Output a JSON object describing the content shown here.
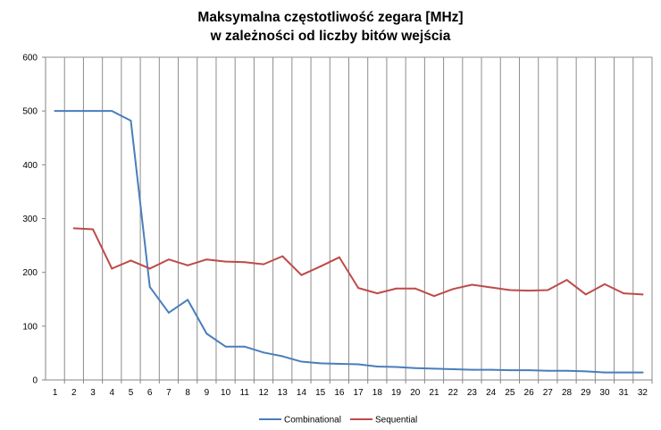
{
  "chart_data": {
    "type": "line",
    "title": [
      "Maksymalna częstotliwość zegara [MHz]",
      "w zależności od liczby bitów wejścia"
    ],
    "xlabel": "",
    "ylabel": "",
    "categories": [
      "1",
      "2",
      "3",
      "4",
      "5",
      "6",
      "7",
      "8",
      "9",
      "10",
      "11",
      "12",
      "13",
      "14",
      "15",
      "16",
      "17",
      "18",
      "19",
      "20",
      "21",
      "22",
      "23",
      "24",
      "25",
      "26",
      "27",
      "28",
      "29",
      "30",
      "31",
      "32"
    ],
    "ylim": [
      0,
      600
    ],
    "yticks": [
      0,
      100,
      200,
      300,
      400,
      500,
      600
    ],
    "grid": {
      "vertical": true,
      "horizontal": false
    },
    "legend_position": "bottom",
    "series": [
      {
        "name": "Combinational",
        "color": "#4a7ebb",
        "values": [
          500,
          500,
          500,
          500,
          482,
          173,
          125,
          149,
          86,
          62,
          62,
          51,
          44,
          34,
          31,
          30,
          29,
          25,
          24,
          22,
          21,
          20,
          19,
          19,
          18,
          18,
          17,
          17,
          16,
          14,
          14,
          14
        ]
      },
      {
        "name": "Sequential",
        "color": "#be4b48",
        "values": [
          null,
          282,
          280,
          207,
          222,
          207,
          224,
          213,
          224,
          220,
          219,
          215,
          230,
          195,
          211,
          228,
          171,
          161,
          170,
          170,
          156,
          169,
          177,
          172,
          167,
          166,
          167,
          186,
          159,
          178,
          161,
          159
        ]
      }
    ]
  }
}
